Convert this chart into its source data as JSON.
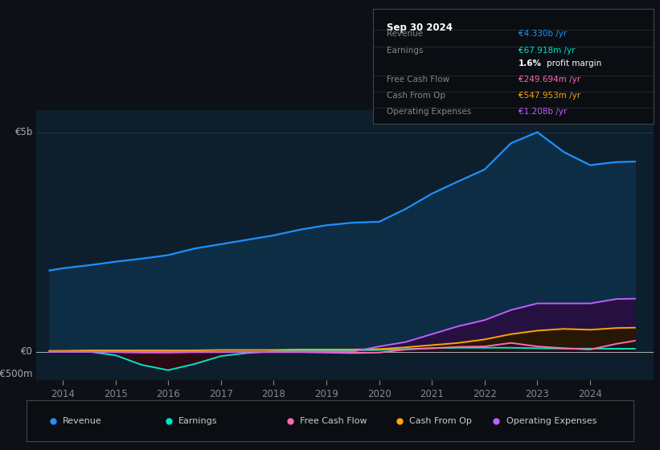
{
  "bg_color": "#0d1117",
  "plot_bg_color": "#0d1f2d",
  "title_box": {
    "date": "Sep 30 2024",
    "rows": [
      {
        "label": "Revenue",
        "value": "€4.330b /yr",
        "value_color": "#1e90ff"
      },
      {
        "label": "Earnings",
        "value": "€67.918m /yr",
        "value_color": "#00e5c8"
      },
      {
        "label": "",
        "value2a": "1.6%",
        "value2b": " profit margin",
        "value_color": "#ffffff"
      },
      {
        "label": "Free Cash Flow",
        "value": "€249.694m /yr",
        "value_color": "#ff69b4"
      },
      {
        "label": "Cash From Op",
        "value": "€547.953m /yr",
        "value_color": "#ffa500"
      },
      {
        "label": "Operating Expenses",
        "value": "€1.208b /yr",
        "value_color": "#bf5fff"
      }
    ]
  },
  "ylabel_e5b": "€5b",
  "ylabel_e0": "€0",
  "ylabel_neg500m": "-€500m",
  "x_labels": [
    "2014",
    "2015",
    "2016",
    "2017",
    "2018",
    "2019",
    "2020",
    "2021",
    "2022",
    "2023",
    "2024"
  ],
  "x_ticks": [
    2014,
    2015,
    2016,
    2017,
    2018,
    2019,
    2020,
    2021,
    2022,
    2023,
    2024
  ],
  "ylim": [
    -0.65,
    5.5
  ],
  "xlim": [
    2013.5,
    2025.2
  ],
  "years": [
    2013.75,
    2014.0,
    2014.5,
    2015.0,
    2015.5,
    2016.0,
    2016.5,
    2017.0,
    2017.5,
    2018.0,
    2018.5,
    2019.0,
    2019.5,
    2020.0,
    2020.5,
    2021.0,
    2021.5,
    2022.0,
    2022.5,
    2023.0,
    2023.5,
    2024.0,
    2024.5,
    2024.85
  ],
  "revenue": [
    1.85,
    1.9,
    1.97,
    2.05,
    2.12,
    2.2,
    2.35,
    2.45,
    2.55,
    2.65,
    2.78,
    2.88,
    2.94,
    2.96,
    3.25,
    3.6,
    3.88,
    4.15,
    4.75,
    5.0,
    4.55,
    4.25,
    4.32,
    4.33
  ],
  "earnings": [
    0.01,
    0.01,
    0.0,
    -0.08,
    -0.3,
    -0.42,
    -0.28,
    -0.1,
    -0.03,
    0.01,
    0.02,
    0.02,
    0.03,
    0.04,
    0.06,
    0.08,
    0.09,
    0.09,
    0.09,
    0.08,
    0.07,
    0.07,
    0.068,
    0.068
  ],
  "free_cash_flow": [
    0.0,
    0.0,
    0.0,
    -0.01,
    -0.02,
    -0.02,
    -0.01,
    -0.01,
    -0.01,
    -0.01,
    -0.01,
    -0.02,
    -0.03,
    -0.02,
    0.05,
    0.08,
    0.11,
    0.12,
    0.2,
    0.12,
    0.08,
    0.05,
    0.18,
    0.25
  ],
  "cash_from_op": [
    0.02,
    0.02,
    0.03,
    0.03,
    0.03,
    0.03,
    0.03,
    0.04,
    0.04,
    0.04,
    0.05,
    0.05,
    0.05,
    0.06,
    0.1,
    0.15,
    0.2,
    0.28,
    0.4,
    0.48,
    0.52,
    0.5,
    0.54,
    0.548
  ],
  "op_expenses": [
    0.0,
    0.0,
    0.0,
    0.0,
    0.0,
    0.0,
    0.0,
    0.0,
    0.0,
    0.0,
    0.0,
    0.0,
    0.0,
    0.12,
    0.22,
    0.4,
    0.58,
    0.72,
    0.95,
    1.1,
    1.1,
    1.1,
    1.2,
    1.208
  ],
  "revenue_color": "#1e90ff",
  "earnings_color": "#00e5c8",
  "fcf_color": "#ff69b4",
  "cashop_color": "#ffa500",
  "opex_color": "#bf5fff",
  "legend_items": [
    {
      "label": "Revenue",
      "color": "#1e90ff"
    },
    {
      "label": "Earnings",
      "color": "#00e5c8"
    },
    {
      "label": "Free Cash Flow",
      "color": "#ff69b4"
    },
    {
      "label": "Cash From Op",
      "color": "#ffa500"
    },
    {
      "label": "Operating Expenses",
      "color": "#bf5fff"
    }
  ]
}
